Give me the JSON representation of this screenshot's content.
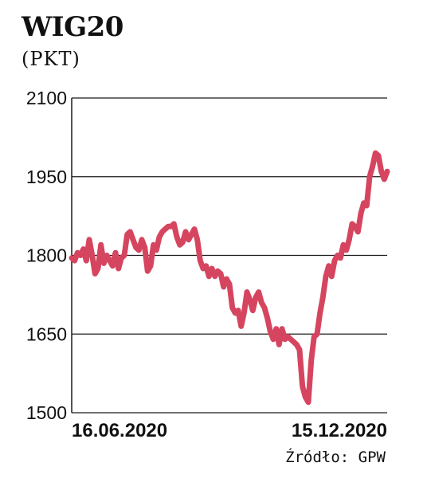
{
  "header": {
    "title": "WIG20",
    "unit": "(PKT)"
  },
  "footer": {
    "source": "Źródło: GPW"
  },
  "colors": {
    "line": "#d6455f",
    "grid": "#1a1a1a",
    "text": "#111111"
  },
  "chart_data": {
    "type": "line",
    "title": "WIG20",
    "ylabel": "(PKT)",
    "ylim": [
      1500,
      2100
    ],
    "yticks": [
      1500,
      1650,
      1800,
      1950,
      2100
    ],
    "x_tick_labels": [
      "16.06.2020",
      "15.12.2020"
    ],
    "grid": true,
    "series": [
      {
        "values": [
          1795,
          1790,
          1805,
          1800,
          1812,
          1790,
          1830,
          1800,
          1765,
          1775,
          1820,
          1785,
          1800,
          1790,
          1780,
          1805,
          1775,
          1795,
          1800,
          1840,
          1845,
          1830,
          1815,
          1810,
          1830,
          1815,
          1770,
          1780,
          1820,
          1810,
          1835,
          1845,
          1850,
          1855,
          1855,
          1860,
          1835,
          1820,
          1825,
          1845,
          1830,
          1840,
          1850,
          1830,
          1790,
          1775,
          1780,
          1760,
          1775,
          1760,
          1770,
          1765,
          1740,
          1755,
          1745,
          1700,
          1690,
          1695,
          1665,
          1690,
          1730,
          1715,
          1695,
          1720,
          1730,
          1710,
          1700,
          1680,
          1655,
          1640,
          1660,
          1630,
          1660,
          1640,
          1645,
          1640,
          1635,
          1630,
          1620,
          1550,
          1530,
          1520,
          1600,
          1645,
          1650,
          1690,
          1720,
          1760,
          1780,
          1760,
          1790,
          1800,
          1795,
          1820,
          1810,
          1830,
          1860,
          1855,
          1845,
          1880,
          1900,
          1895,
          1950,
          1970,
          1995,
          1990,
          1960,
          1945,
          1960
        ]
      }
    ]
  }
}
